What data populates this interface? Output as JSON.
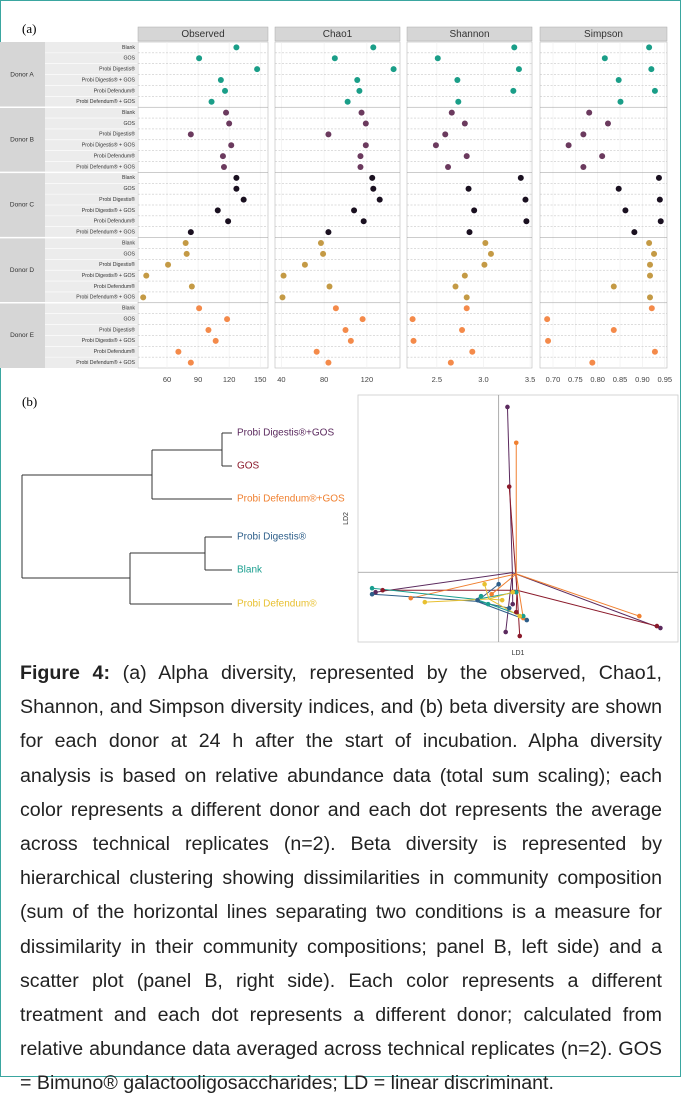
{
  "panel_labels": [
    "(a)",
    "(b)"
  ],
  "chart_data": [
    {
      "type": "dot-facets",
      "groups": [
        {
          "name": "Donor A",
          "color": "#1a9e88",
          "categories": [
            "Blank",
            "GOS",
            "Probi Digestis®",
            "Probi Digestis® + GOS",
            "Probi Defendum®",
            "Probi Defendum® + GOS"
          ]
        },
        {
          "name": "Donor B",
          "color": "#6b3a5e",
          "categories": [
            "Blank",
            "GOS",
            "Probi Digestis®",
            "Probi Digestis® + GOS",
            "Probi Defendum®",
            "Probi Defendum® + GOS"
          ]
        },
        {
          "name": "Donor C",
          "color": "#1a1020",
          "categories": [
            "Blank",
            "GOS",
            "Probi Digestis®",
            "Probi Digestis® + GOS",
            "Probi Defendum®",
            "Probi Defendum® + GOS"
          ]
        },
        {
          "name": "Donor D",
          "color": "#c49a45",
          "categories": [
            "Blank",
            "GOS",
            "Probi Digestis®",
            "Probi Digestis® + GOS",
            "Probi Defendum®",
            "Probi Defendum® + GOS"
          ]
        },
        {
          "name": "Donor E",
          "color": "#f48a4a",
          "categories": [
            "Blank",
            "GOS",
            "Probi Digestis®",
            "Probi Digestis® + GOS",
            "Probi Defendum®",
            "Probi Defendum® + GOS"
          ]
        }
      ],
      "facets": [
        {
          "title": "Observed",
          "xlim": [
            32,
            157.5
          ],
          "xticks": [
            60,
            90,
            120,
            150
          ],
          "values": [
            127,
            91,
            147,
            112,
            116,
            103,
            117,
            120,
            83,
            122,
            114,
            115,
            127,
            127,
            134,
            109,
            119,
            83,
            78,
            79,
            61,
            40,
            84,
            37,
            91,
            118,
            100,
            107,
            71,
            83
          ]
        },
        {
          "title": "Chao1",
          "xlim": [
            34,
            151
          ],
          "xticks": [
            40,
            80,
            120
          ],
          "values": [
            126,
            90,
            145,
            111,
            113,
            102,
            115,
            119,
            84,
            119,
            114,
            114,
            125,
            126,
            132,
            108,
            117,
            84,
            77,
            79,
            62,
            42,
            85,
            41,
            91,
            116,
            100,
            105,
            73,
            84
          ]
        },
        {
          "title": "Shannon",
          "xlim": [
            2.18,
            3.52
          ],
          "xticks": [
            2.5,
            {
              "value": 3,
              "label": "3.0"
            },
            3.5
          ],
          "values": [
            3.33,
            2.51,
            3.38,
            2.72,
            3.32,
            2.73,
            2.66,
            2.8,
            2.59,
            2.49,
            2.82,
            2.62,
            3.4,
            2.84,
            3.45,
            2.9,
            3.46,
            2.85,
            3.02,
            3.08,
            3.01,
            2.8,
            2.7,
            2.82,
            2.82,
            2.24,
            2.77,
            2.25,
            2.88,
            2.65
          ]
        },
        {
          "title": "Simpson",
          "xlim": [
            0.671,
            0.955
          ],
          "xticks": [
            {
              "value": 0.7,
              "label": "0.70"
            },
            0.75,
            {
              "value": 0.8,
              "label": "0.80"
            },
            0.85,
            {
              "value": 0.9,
              "label": "0.90"
            },
            0.95
          ],
          "values": [
            0.915,
            0.816,
            0.92,
            0.847,
            0.928,
            0.851,
            0.781,
            0.823,
            0.768,
            0.735,
            0.81,
            0.768,
            0.937,
            0.847,
            0.939,
            0.862,
            0.941,
            0.882,
            0.915,
            0.926,
            0.917,
            0.917,
            0.836,
            0.917,
            0.921,
            0.687,
            0.836,
            0.689,
            0.928,
            0.788
          ]
        }
      ]
    },
    {
      "type": "scatter",
      "x_label": "LD1",
      "y_label": "LD2",
      "xlim": [
        -4,
        5.1
      ],
      "ylim": [
        -3.5,
        8.9
      ],
      "series": [
        {
          "name": "Probi Digestis®+GOS",
          "color": "#5b2a5e",
          "x": [
            -3.5,
            0.25,
            0.4,
            0.2,
            4.6
          ],
          "y": [
            -1.0,
            8.3,
            -1.6,
            -3.0,
            -2.8
          ]
        },
        {
          "name": "GOS",
          "color": "#8b1a2b",
          "x": [
            -3.3,
            0.3,
            0.5,
            0.6,
            4.5
          ],
          "y": [
            -0.9,
            4.3,
            -2.0,
            -3.2,
            -2.7
          ]
        },
        {
          "name": "Probi Defendum®+GOS",
          "color": "#f08030",
          "x": [
            -2.5,
            0.5,
            0.7,
            -0.2,
            4.0
          ],
          "y": [
            -1.3,
            6.5,
            -2.3,
            -1.1,
            -2.2
          ]
        },
        {
          "name": "Probi Digestis®",
          "color": "#2e5f8a",
          "x": [
            -3.6,
            -0.6,
            0.8,
            0.0,
            0.3
          ],
          "y": [
            -1.1,
            -1.4,
            -2.4,
            -0.6,
            -1.8
          ]
        },
        {
          "name": "Blank",
          "color": "#1a9e8f",
          "x": [
            -3.6,
            -0.5,
            -0.3,
            0.5,
            0.7
          ],
          "y": [
            -0.8,
            -1.2,
            -1.6,
            -1.0,
            -2.2
          ]
        },
        {
          "name": "Probi Defendum®",
          "color": "#e8c030",
          "x": [
            -2.1,
            -0.4,
            0.6,
            0.4,
            0.1
          ],
          "y": [
            -1.5,
            -0.6,
            -2.2,
            -1.0,
            -1.4
          ]
        }
      ]
    }
  ],
  "caption": {
    "label": "Figure 4:",
    "text": "(a) Alpha diversity, represented by the observed, Chao1, Shannon, and Simpson diversity indices, and (b) beta diversity are shown for each donor at 24 h after the start of incubation. Alpha diversity analysis is based on relative abundance data (total sum scaling); each color represents a different donor and each dot represents the average across technical replicates (n=2). Beta diversity is represented by hierarchical clustering showing dissimilarities in community composition (sum of the horizontal lines separating two conditions is a measure for dissimilarity in their community compositions; panel B, left side) and a scatter plot (panel B, right side). Each color represents a different treatment and each dot represents a different donor; calculated from relative abundance data averaged across technical replicates (n=2). GOS = Bimuno® galactooligosaccharides; LD = linear discriminant."
  }
}
